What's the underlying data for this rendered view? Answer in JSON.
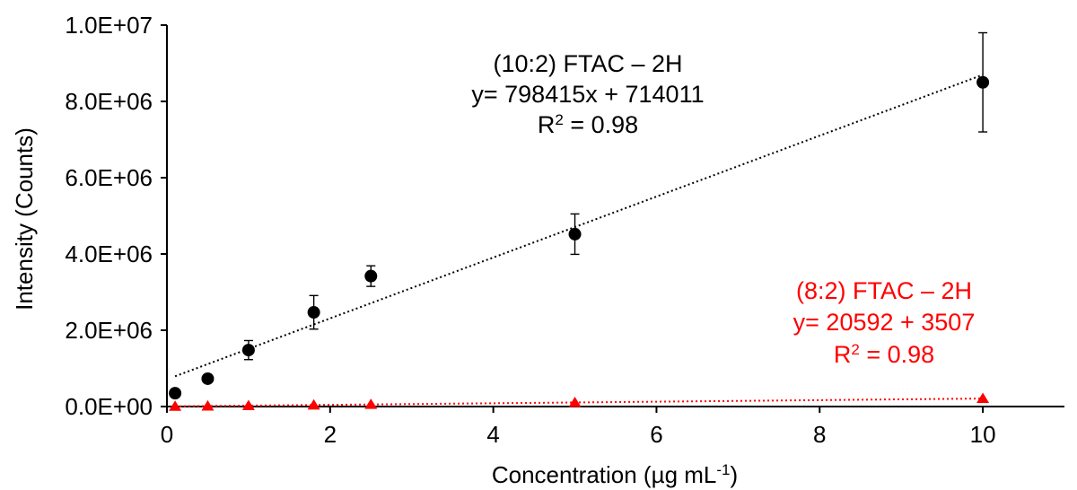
{
  "chart_data": {
    "type": "scatter",
    "xlabel_base": "Concentration (µg mL",
    "xlabel_sup": "-1",
    "xlabel_end": ")",
    "ylabel": "Intensity (Counts)",
    "xlim": [
      0,
      11
    ],
    "ylim": [
      0,
      10000000
    ],
    "x_ticks": [
      0,
      2,
      4,
      6,
      8,
      10
    ],
    "x_tick_labels": [
      "0",
      "2",
      "4",
      "6",
      "8",
      "10"
    ],
    "y_ticks": [
      0,
      2000000,
      4000000,
      6000000,
      8000000,
      10000000
    ],
    "y_tick_labels": [
      "0.0E+00",
      "2.0E+06",
      "4.0E+06",
      "6.0E+06",
      "8.0E+06",
      "1.0E+07"
    ],
    "grid": false,
    "series": [
      {
        "color": "#000000",
        "marker": "circle",
        "points": [
          {
            "x": 0.1,
            "y": 350000,
            "err": 0
          },
          {
            "x": 0.5,
            "y": 730000,
            "err": 0
          },
          {
            "x": 1.0,
            "y": 1480000,
            "err": 250000
          },
          {
            "x": 1.8,
            "y": 2470000,
            "err": 440000
          },
          {
            "x": 2.5,
            "y": 3420000,
            "err": 270000
          },
          {
            "x": 5.0,
            "y": 4520000,
            "err": 530000
          },
          {
            "x": 10.0,
            "y": 8500000,
            "err": 1300000
          }
        ],
        "trendline": {
          "slope": 798415,
          "intercept": 714011,
          "x_range": [
            0.1,
            10
          ]
        },
        "annotation": {
          "line1": "(10:2) FTAC – 2H",
          "line2": "y= 798415x + 714011",
          "r2_prefix": "R",
          "r2_sup": "2",
          "r2_value": " = 0.98"
        }
      },
      {
        "color": "#ff0000",
        "marker": "triangle",
        "points": [
          {
            "x": 0.1,
            "y": 5000
          },
          {
            "x": 0.5,
            "y": 12000
          },
          {
            "x": 1.0,
            "y": 22000
          },
          {
            "x": 1.8,
            "y": 38000
          },
          {
            "x": 2.5,
            "y": 55000
          },
          {
            "x": 5.0,
            "y": 105000
          },
          {
            "x": 10.0,
            "y": 210000
          }
        ],
        "trendline": {
          "slope": 20592,
          "intercept": 3507,
          "x_range": [
            0.1,
            10
          ]
        },
        "annotation": {
          "line1": "(8:2) FTAC – 2H",
          "line2": "y= 20592 + 3507",
          "r2_prefix": "R",
          "r2_sup": "2",
          "r2_value": " = 0.98"
        }
      }
    ]
  }
}
